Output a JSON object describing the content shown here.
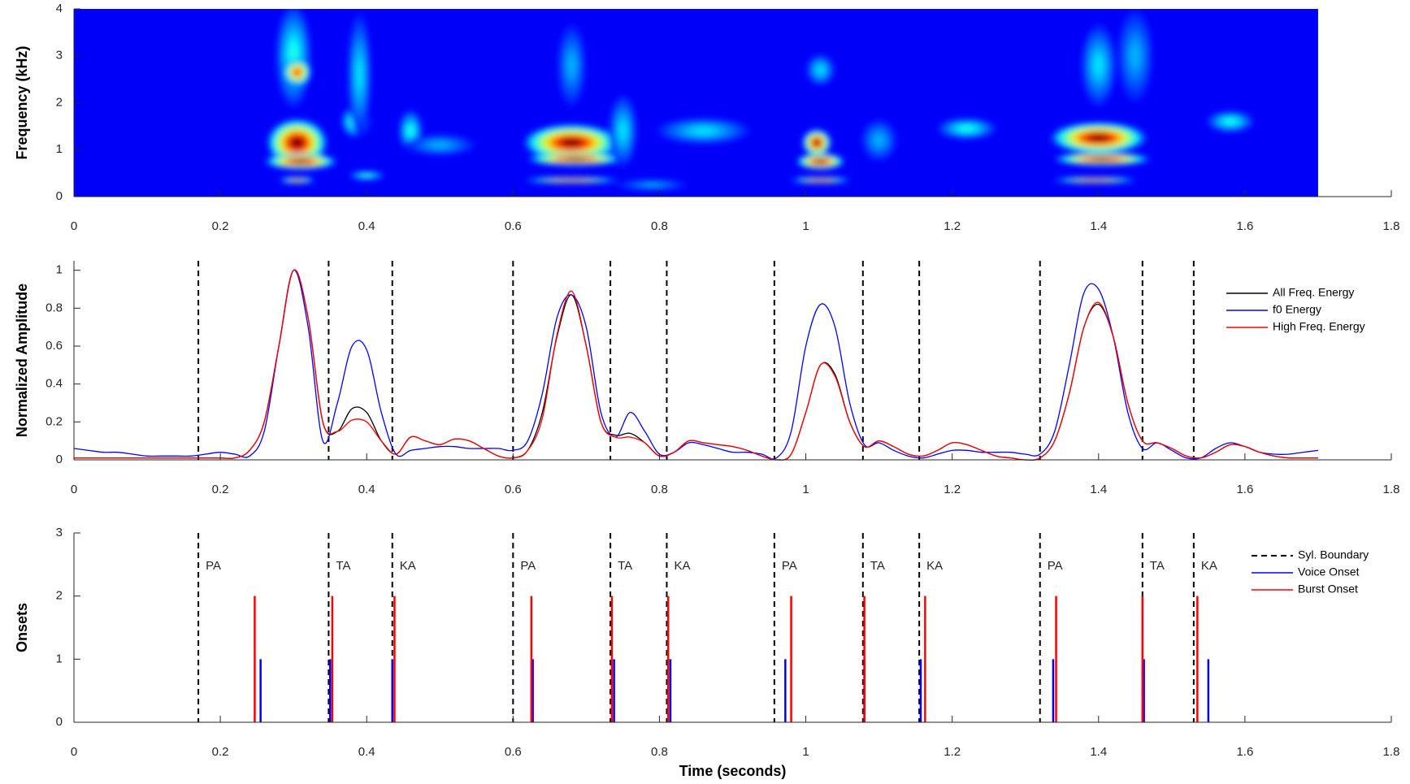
{
  "chart_data": [
    {
      "type": "heatmap",
      "ylabel": "Frequency (kHz)",
      "colormap": "jet",
      "data_xlim": [
        0,
        1.7
      ],
      "xlim": [
        0,
        1.8
      ],
      "xticks": [
        0,
        0.2,
        0.4,
        0.6,
        0.8,
        1,
        1.2,
        1.4,
        1.6,
        1.8
      ],
      "ylim": [
        0,
        4
      ],
      "yticks": [
        0,
        1,
        2,
        3,
        4
      ],
      "blobs": [
        {
          "t": 0.305,
          "f": 1.15,
          "wt": 0.025,
          "hf": 0.45,
          "level": 1.0
        },
        {
          "t": 0.31,
          "f": 0.75,
          "wt": 0.03,
          "hf": 0.15,
          "level": 1.0
        },
        {
          "t": 0.3,
          "f": 3.0,
          "wt": 0.015,
          "hf": 1.0,
          "level": 0.4
        },
        {
          "t": 0.305,
          "f": 2.65,
          "wt": 0.012,
          "hf": 0.25,
          "level": 0.85
        },
        {
          "t": 0.305,
          "f": 0.35,
          "wt": 0.015,
          "hf": 0.05,
          "level": 0.8
        },
        {
          "t": 0.385,
          "f": 1.6,
          "wt": 0.012,
          "hf": 0.3,
          "level": 0.5
        },
        {
          "t": 0.39,
          "f": 2.6,
          "wt": 0.01,
          "hf": 1.2,
          "level": 0.35
        },
        {
          "t": 0.4,
          "f": 0.45,
          "wt": 0.015,
          "hf": 0.08,
          "level": 0.45
        },
        {
          "t": 0.46,
          "f": 1.4,
          "wt": 0.01,
          "hf": 0.4,
          "level": 0.4
        },
        {
          "t": 0.5,
          "f": 1.1,
          "wt": 0.03,
          "hf": 0.2,
          "level": 0.3
        },
        {
          "t": 0.68,
          "f": 1.15,
          "wt": 0.04,
          "hf": 0.35,
          "level": 1.0
        },
        {
          "t": 0.685,
          "f": 0.8,
          "wt": 0.04,
          "hf": 0.12,
          "level": 1.0
        },
        {
          "t": 0.68,
          "f": 0.35,
          "wt": 0.04,
          "hf": 0.05,
          "level": 0.85
        },
        {
          "t": 0.68,
          "f": 2.8,
          "wt": 0.012,
          "hf": 0.8,
          "level": 0.3
        },
        {
          "t": 0.75,
          "f": 1.4,
          "wt": 0.012,
          "hf": 0.7,
          "level": 0.35
        },
        {
          "t": 0.79,
          "f": 0.25,
          "wt": 0.03,
          "hf": 0.1,
          "level": 0.3
        },
        {
          "t": 0.86,
          "f": 1.4,
          "wt": 0.04,
          "hf": 0.25,
          "level": 0.35
        },
        {
          "t": 1.015,
          "f": 1.15,
          "wt": 0.012,
          "hf": 0.25,
          "level": 1.0
        },
        {
          "t": 1.02,
          "f": 0.75,
          "wt": 0.02,
          "hf": 0.15,
          "level": 1.0
        },
        {
          "t": 1.02,
          "f": 0.35,
          "wt": 0.025,
          "hf": 0.05,
          "level": 0.85
        },
        {
          "t": 1.02,
          "f": 2.7,
          "wt": 0.012,
          "hf": 0.3,
          "level": 0.35
        },
        {
          "t": 1.1,
          "f": 1.2,
          "wt": 0.015,
          "hf": 0.4,
          "level": 0.3
        },
        {
          "t": 1.22,
          "f": 1.45,
          "wt": 0.025,
          "hf": 0.2,
          "level": 0.4
        },
        {
          "t": 1.4,
          "f": 1.25,
          "wt": 0.04,
          "hf": 0.3,
          "level": 1.0
        },
        {
          "t": 1.405,
          "f": 0.8,
          "wt": 0.04,
          "hf": 0.12,
          "level": 1.0
        },
        {
          "t": 1.395,
          "f": 0.35,
          "wt": 0.035,
          "hf": 0.05,
          "level": 0.85
        },
        {
          "t": 1.4,
          "f": 2.8,
          "wt": 0.015,
          "hf": 0.8,
          "level": 0.35
        },
        {
          "t": 1.45,
          "f": 3.0,
          "wt": 0.015,
          "hf": 0.9,
          "level": 0.3
        },
        {
          "t": 1.58,
          "f": 1.6,
          "wt": 0.02,
          "hf": 0.2,
          "level": 0.4
        }
      ]
    },
    {
      "type": "line",
      "ylabel": "Normalized Amplitude",
      "legend": "upper right",
      "xlim": [
        0,
        1.8
      ],
      "xticks": [
        0,
        0.2,
        0.4,
        0.6,
        0.8,
        1,
        1.2,
        1.4,
        1.6,
        1.8
      ],
      "ylim": [
        0,
        1.05
      ],
      "yticks": [
        0,
        0.2,
        0.4,
        0.6,
        0.8,
        1
      ],
      "boundaries": [
        0.17,
        0.348,
        0.435,
        0.6,
        0.733,
        0.81,
        0.957,
        1.078,
        1.155,
        1.32,
        1.46,
        1.53
      ],
      "x": [
        0,
        0.02,
        0.04,
        0.06,
        0.08,
        0.1,
        0.12,
        0.14,
        0.16,
        0.18,
        0.2,
        0.22,
        0.24,
        0.26,
        0.28,
        0.3,
        0.32,
        0.34,
        0.36,
        0.38,
        0.4,
        0.42,
        0.44,
        0.46,
        0.48,
        0.5,
        0.52,
        0.54,
        0.56,
        0.58,
        0.6,
        0.62,
        0.64,
        0.66,
        0.68,
        0.7,
        0.72,
        0.74,
        0.76,
        0.78,
        0.8,
        0.82,
        0.84,
        0.86,
        0.88,
        0.9,
        0.92,
        0.94,
        0.96,
        0.98,
        1,
        1.02,
        1.04,
        1.06,
        1.08,
        1.1,
        1.12,
        1.14,
        1.16,
        1.18,
        1.2,
        1.22,
        1.24,
        1.26,
        1.28,
        1.3,
        1.32,
        1.34,
        1.36,
        1.38,
        1.4,
        1.42,
        1.44,
        1.46,
        1.48,
        1.5,
        1.52,
        1.54,
        1.56,
        1.58,
        1.6,
        1.62,
        1.64,
        1.66,
        1.68,
        1.7
      ],
      "series": [
        {
          "name": "All Freq. Energy",
          "color": "#000000",
          "values": [
            0.01,
            0.01,
            0.01,
            0.01,
            0.01,
            0.01,
            0.01,
            0.01,
            0.01,
            0.01,
            0.01,
            0.01,
            0.05,
            0.2,
            0.6,
            1.0,
            0.75,
            0.2,
            0.15,
            0.27,
            0.25,
            0.1,
            0.03,
            0.12,
            0.1,
            0.08,
            0.11,
            0.1,
            0.06,
            0.02,
            0.01,
            0.05,
            0.25,
            0.65,
            0.87,
            0.6,
            0.2,
            0.13,
            0.14,
            0.09,
            0.02,
            0.04,
            0.1,
            0.09,
            0.08,
            0.07,
            0.05,
            0.02,
            0,
            0.03,
            0.25,
            0.5,
            0.45,
            0.2,
            0.07,
            0.1,
            0.07,
            0.03,
            0.02,
            0.05,
            0.09,
            0.08,
            0.05,
            0.02,
            0.01,
            0,
            0.01,
            0.1,
            0.35,
            0.7,
            0.82,
            0.65,
            0.3,
            0.1,
            0.09,
            0.06,
            0.02,
            0.01,
            0.04,
            0.08,
            0.07,
            0.04,
            0.02,
            0.01,
            0.01,
            0.01
          ]
        },
        {
          "name": "f0 Energy",
          "color": "#0000ff",
          "values": [
            0.06,
            0.05,
            0.04,
            0.04,
            0.03,
            0.02,
            0.02,
            0.02,
            0.02,
            0.03,
            0.04,
            0.03,
            0.02,
            0.15,
            0.6,
            1.0,
            0.7,
            0.1,
            0.3,
            0.6,
            0.58,
            0.25,
            0.03,
            0.05,
            0.06,
            0.07,
            0.07,
            0.06,
            0.06,
            0.06,
            0.05,
            0.1,
            0.35,
            0.75,
            0.87,
            0.7,
            0.25,
            0.12,
            0.25,
            0.15,
            0.03,
            0.04,
            0.09,
            0.08,
            0.06,
            0.04,
            0.04,
            0.03,
            0.01,
            0.15,
            0.6,
            0.82,
            0.7,
            0.3,
            0.08,
            0.09,
            0.05,
            0.02,
            0.01,
            0.03,
            0.05,
            0.05,
            0.04,
            0.04,
            0.04,
            0.03,
            0.03,
            0.15,
            0.5,
            0.88,
            0.9,
            0.65,
            0.25,
            0.06,
            0.09,
            0.05,
            0.01,
            0.01,
            0.06,
            0.09,
            0.07,
            0.04,
            0.03,
            0.03,
            0.04,
            0.05
          ]
        },
        {
          "name": "High Freq. Energy",
          "color": "#ff0000",
          "values": [
            0.01,
            0.01,
            0.01,
            0.01,
            0.01,
            0.01,
            0.01,
            0.01,
            0.01,
            0.01,
            0.01,
            0.01,
            0.05,
            0.2,
            0.6,
            1.0,
            0.75,
            0.2,
            0.15,
            0.21,
            0.2,
            0.1,
            0.03,
            0.12,
            0.1,
            0.08,
            0.11,
            0.1,
            0.06,
            0.02,
            0.01,
            0.05,
            0.22,
            0.66,
            0.89,
            0.6,
            0.2,
            0.12,
            0.12,
            0.09,
            0.02,
            0.04,
            0.1,
            0.09,
            0.08,
            0.07,
            0.05,
            0.02,
            0,
            0.03,
            0.25,
            0.5,
            0.44,
            0.2,
            0.07,
            0.1,
            0.07,
            0.03,
            0.02,
            0.05,
            0.09,
            0.08,
            0.05,
            0.02,
            0.01,
            0,
            0.01,
            0.1,
            0.35,
            0.7,
            0.83,
            0.65,
            0.3,
            0.1,
            0.09,
            0.06,
            0.02,
            0.01,
            0.04,
            0.08,
            0.07,
            0.04,
            0.02,
            0.01,
            0.01,
            0.01
          ]
        }
      ]
    },
    {
      "type": "stem",
      "ylabel": "Onsets",
      "xlabel": "Time (seconds)",
      "legend": "upper right",
      "xlim": [
        0,
        1.8
      ],
      "xticks": [
        0,
        0.2,
        0.4,
        0.6,
        0.8,
        1,
        1.2,
        1.4,
        1.6,
        1.8
      ],
      "ylim": [
        0,
        3
      ],
      "yticks": [
        0,
        1,
        2,
        3
      ],
      "syllable_labels": [
        "PA",
        "TA",
        "KA",
        "PA",
        "TA",
        "KA",
        "PA",
        "TA",
        "KA",
        "PA",
        "TA",
        "KA"
      ],
      "series": [
        {
          "name": "Syl. Boundary",
          "color": "#000000",
          "style": "dashed",
          "x": [
            0.17,
            0.348,
            0.435,
            0.6,
            0.733,
            0.81,
            0.957,
            1.078,
            1.155,
            1.32,
            1.46,
            1.53
          ]
        },
        {
          "name": "Voice Onset",
          "color": "#0000ff",
          "x": [
            0.255,
            0.35,
            0.435,
            0.627,
            0.738,
            0.815,
            0.972,
            1.08,
            1.157,
            1.338,
            1.462,
            1.55
          ],
          "values": [
            1,
            1,
            1,
            1,
            1,
            1,
            1,
            1,
            1,
            1,
            1,
            1
          ]
        },
        {
          "name": "Burst Onset",
          "color": "#ff0000",
          "x": [
            0.247,
            0.353,
            0.438,
            0.625,
            0.735,
            0.812,
            0.98,
            1.08,
            1.163,
            1.342,
            1.46,
            1.535
          ],
          "values": [
            2,
            2,
            2,
            2,
            2,
            2,
            2,
            2,
            2,
            2,
            2,
            2
          ]
        }
      ]
    }
  ]
}
